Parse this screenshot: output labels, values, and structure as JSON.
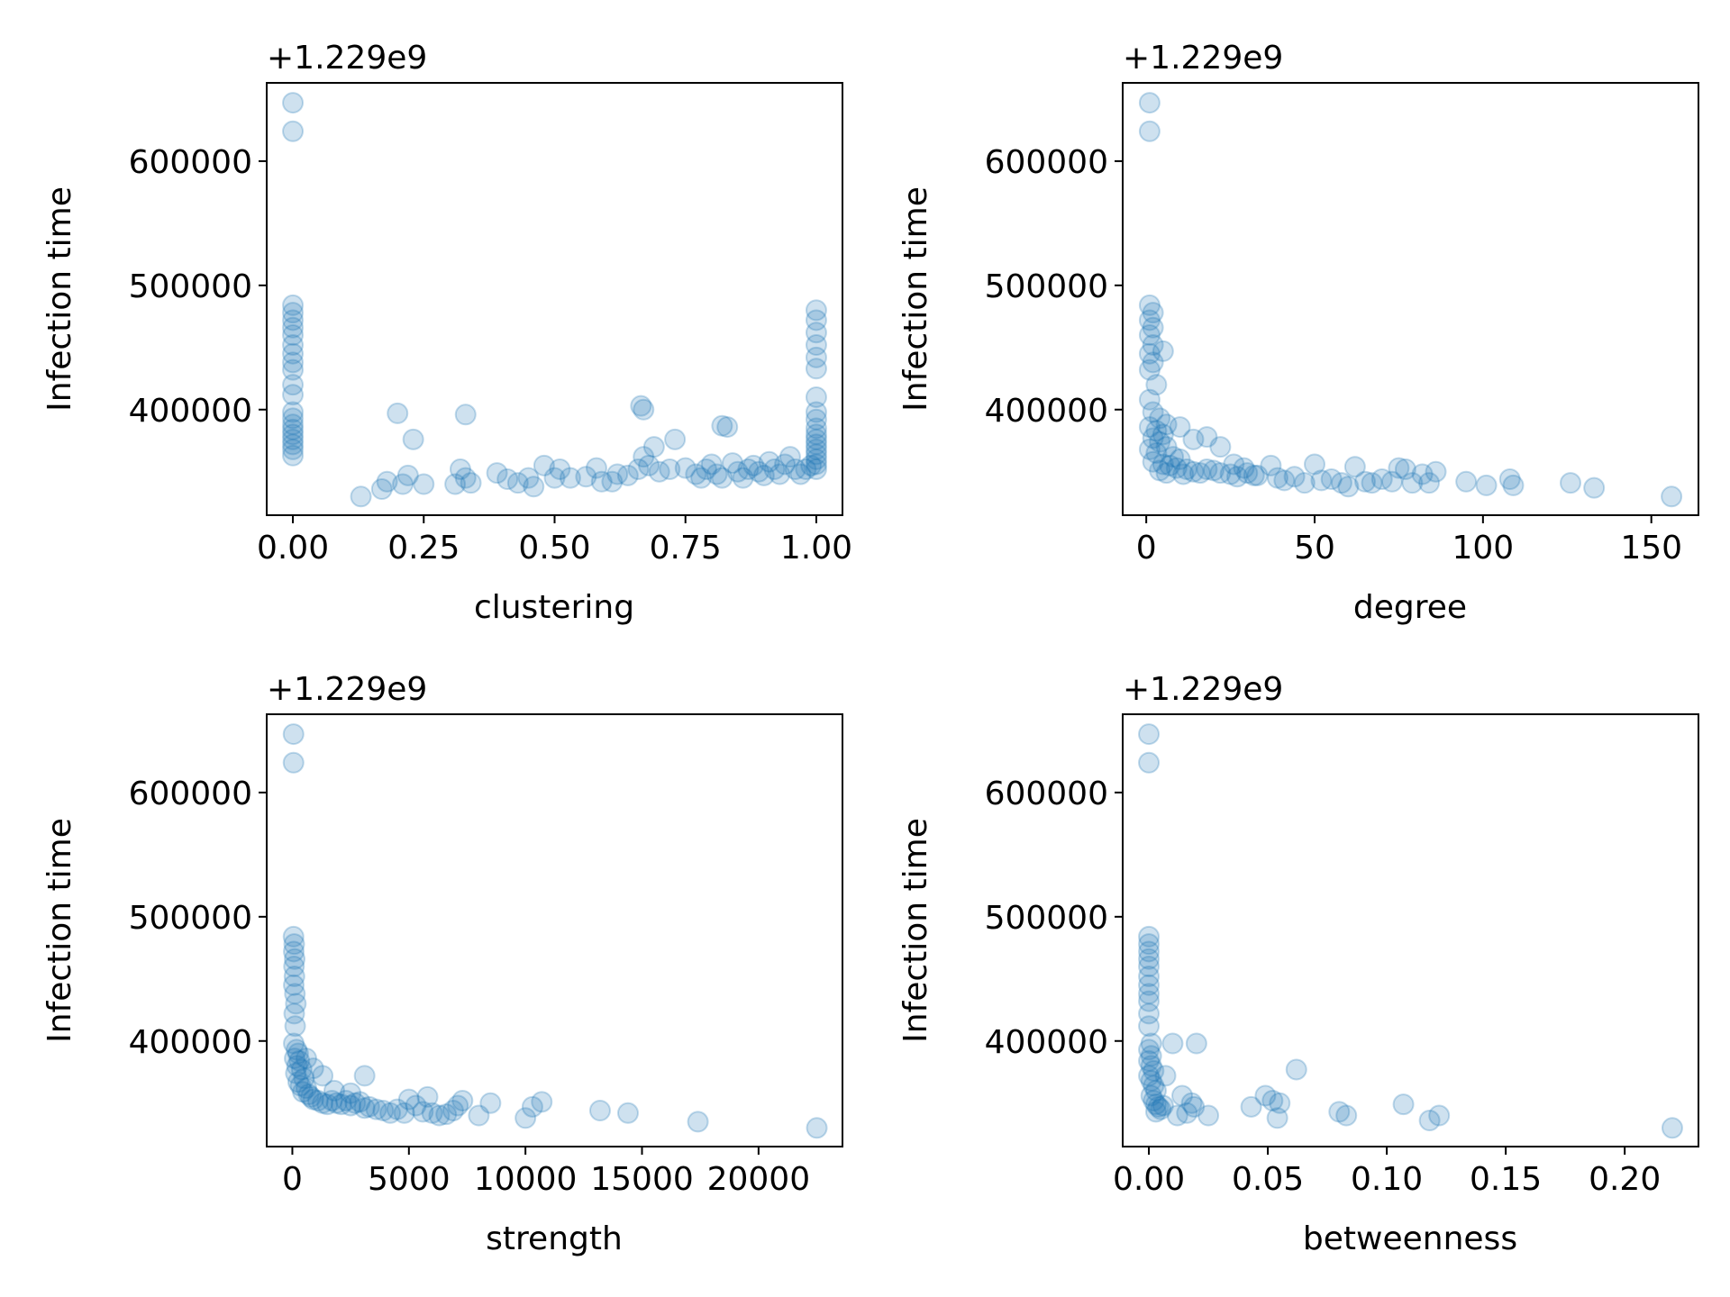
{
  "chart_data": [
    {
      "type": "scatter",
      "xlabel": "clustering",
      "ylabel": "Infection time",
      "y_offset_text": "+1.229e9",
      "xlim": [
        -0.05,
        1.05
      ],
      "ylim": [
        315000,
        663000
      ],
      "xticks": [
        0.0,
        0.25,
        0.5,
        0.75,
        1.0
      ],
      "xtick_labels": [
        "0.00",
        "0.25",
        "0.50",
        "0.75",
        "1.00"
      ],
      "yticks": [
        400000,
        500000,
        600000
      ],
      "ytick_labels": [
        "400000",
        "500000",
        "600000"
      ],
      "marker_color": "#1f77b4",
      "marker_alpha": 0.22,
      "grid": false,
      "points": [
        [
          0.0,
          647000
        ],
        [
          0.0,
          624000
        ],
        [
          0.0,
          484000
        ],
        [
          0.0,
          478000
        ],
        [
          0.0,
          472000
        ],
        [
          0.0,
          466000
        ],
        [
          0.0,
          460000
        ],
        [
          0.0,
          452000
        ],
        [
          0.0,
          445000
        ],
        [
          0.0,
          438000
        ],
        [
          0.0,
          432000
        ],
        [
          0.0,
          420000
        ],
        [
          0.0,
          412000
        ],
        [
          0.0,
          398000
        ],
        [
          0.0,
          393000
        ],
        [
          0.0,
          388000
        ],
        [
          0.0,
          384000
        ],
        [
          0.0,
          380000
        ],
        [
          0.0,
          376000
        ],
        [
          0.0,
          372000
        ],
        [
          0.0,
          368000
        ],
        [
          0.0,
          363000
        ],
        [
          0.13,
          330000
        ],
        [
          0.17,
          336000
        ],
        [
          0.18,
          342000
        ],
        [
          0.2,
          397000
        ],
        [
          0.21,
          340000
        ],
        [
          0.22,
          347000
        ],
        [
          0.23,
          376000
        ],
        [
          0.25,
          340000
        ],
        [
          0.31,
          340000
        ],
        [
          0.32,
          352000
        ],
        [
          0.33,
          345000
        ],
        [
          0.33,
          396000
        ],
        [
          0.34,
          341000
        ],
        [
          0.39,
          349000
        ],
        [
          0.41,
          344000
        ],
        [
          0.43,
          341000
        ],
        [
          0.45,
          345000
        ],
        [
          0.46,
          338000
        ],
        [
          0.48,
          355000
        ],
        [
          0.5,
          345000
        ],
        [
          0.51,
          352000
        ],
        [
          0.53,
          345000
        ],
        [
          0.56,
          346000
        ],
        [
          0.58,
          353000
        ],
        [
          0.59,
          342000
        ],
        [
          0.61,
          342000
        ],
        [
          0.62,
          348000
        ],
        [
          0.64,
          347000
        ],
        [
          0.66,
          352000
        ],
        [
          0.665,
          403000
        ],
        [
          0.67,
          400000
        ],
        [
          0.67,
          362000
        ],
        [
          0.68,
          355000
        ],
        [
          0.69,
          370000
        ],
        [
          0.7,
          350000
        ],
        [
          0.72,
          352000
        ],
        [
          0.73,
          376000
        ],
        [
          0.75,
          353000
        ],
        [
          0.77,
          348000
        ],
        [
          0.78,
          345000
        ],
        [
          0.79,
          352000
        ],
        [
          0.8,
          356000
        ],
        [
          0.81,
          348000
        ],
        [
          0.82,
          345000
        ],
        [
          0.82,
          387000
        ],
        [
          0.83,
          386000
        ],
        [
          0.84,
          357000
        ],
        [
          0.85,
          350000
        ],
        [
          0.86,
          345000
        ],
        [
          0.87,
          352000
        ],
        [
          0.88,
          355000
        ],
        [
          0.89,
          350000
        ],
        [
          0.9,
          347000
        ],
        [
          0.91,
          358000
        ],
        [
          0.92,
          352000
        ],
        [
          0.93,
          348000
        ],
        [
          0.94,
          356000
        ],
        [
          0.95,
          362000
        ],
        [
          0.96,
          352000
        ],
        [
          0.97,
          348000
        ],
        [
          0.98,
          352000
        ],
        [
          0.99,
          355000
        ],
        [
          1.0,
          480000
        ],
        [
          1.0,
          472000
        ],
        [
          1.0,
          462000
        ],
        [
          1.0,
          452000
        ],
        [
          1.0,
          442000
        ],
        [
          1.0,
          433000
        ],
        [
          1.0,
          410000
        ],
        [
          1.0,
          398000
        ],
        [
          1.0,
          392000
        ],
        [
          1.0,
          385000
        ],
        [
          1.0,
          380000
        ],
        [
          1.0,
          376000
        ],
        [
          1.0,
          372000
        ],
        [
          1.0,
          368000
        ],
        [
          1.0,
          364000
        ],
        [
          1.0,
          360000
        ],
        [
          1.0,
          356000
        ],
        [
          1.0,
          352000
        ]
      ]
    },
    {
      "type": "scatter",
      "xlabel": "degree",
      "ylabel": "Infection time",
      "y_offset_text": "+1.229e9",
      "xlim": [
        -7,
        164
      ],
      "ylim": [
        315000,
        663000
      ],
      "xticks": [
        0,
        50,
        100,
        150
      ],
      "xtick_labels": [
        "0",
        "50",
        "100",
        "150"
      ],
      "yticks": [
        400000,
        500000,
        600000
      ],
      "ytick_labels": [
        "400000",
        "500000",
        "600000"
      ],
      "marker_color": "#1f77b4",
      "marker_alpha": 0.22,
      "grid": false,
      "points": [
        [
          1,
          647000
        ],
        [
          1,
          624000
        ],
        [
          1,
          484000
        ],
        [
          2,
          478000
        ],
        [
          1,
          472000
        ],
        [
          2,
          466000
        ],
        [
          1,
          460000
        ],
        [
          2,
          452000
        ],
        [
          1,
          445000
        ],
        [
          2,
          438000
        ],
        [
          5,
          447000
        ],
        [
          1,
          432000
        ],
        [
          3,
          420000
        ],
        [
          1,
          408000
        ],
        [
          2,
          398000
        ],
        [
          4,
          393000
        ],
        [
          6,
          388000
        ],
        [
          1,
          386000
        ],
        [
          3,
          383000
        ],
        [
          5,
          380000
        ],
        [
          2,
          377000
        ],
        [
          4,
          374000
        ],
        [
          6,
          370000
        ],
        [
          1,
          368000
        ],
        [
          3,
          365000
        ],
        [
          8,
          362000
        ],
        [
          10,
          360000
        ],
        [
          2,
          358000
        ],
        [
          5,
          356000
        ],
        [
          7,
          355000
        ],
        [
          9,
          353000
        ],
        [
          12,
          352000
        ],
        [
          4,
          351000
        ],
        [
          6,
          349000
        ],
        [
          11,
          348000
        ],
        [
          14,
          350000
        ],
        [
          16,
          349000
        ],
        [
          18,
          352000
        ],
        [
          20,
          351000
        ],
        [
          22,
          349000
        ],
        [
          25,
          348000
        ],
        [
          27,
          346000
        ],
        [
          30,
          349000
        ],
        [
          32,
          347000
        ],
        [
          10,
          386000
        ],
        [
          14,
          376000
        ],
        [
          18,
          378000
        ],
        [
          22,
          370000
        ],
        [
          26,
          356000
        ],
        [
          29,
          353000
        ],
        [
          33,
          347000
        ],
        [
          37,
          355000
        ],
        [
          39,
          345000
        ],
        [
          41,
          343000
        ],
        [
          44,
          346000
        ],
        [
          47,
          341000
        ],
        [
          50,
          356000
        ],
        [
          52,
          343000
        ],
        [
          55,
          344000
        ],
        [
          58,
          341000
        ],
        [
          60,
          338000
        ],
        [
          62,
          354000
        ],
        [
          65,
          342000
        ],
        [
          67,
          341000
        ],
        [
          70,
          344000
        ],
        [
          73,
          342000
        ],
        [
          75,
          353000
        ],
        [
          77,
          352000
        ],
        [
          79,
          341000
        ],
        [
          82,
          348000
        ],
        [
          84,
          341000
        ],
        [
          86,
          350000
        ],
        [
          95,
          342000
        ],
        [
          101,
          339000
        ],
        [
          108,
          344000
        ],
        [
          109,
          339000
        ],
        [
          126,
          341000
        ],
        [
          133,
          337000
        ],
        [
          156,
          330000
        ]
      ]
    },
    {
      "type": "scatter",
      "xlabel": "strength",
      "ylabel": "Infection time",
      "y_offset_text": "+1.229e9",
      "xlim": [
        -1100,
        23600
      ],
      "ylim": [
        315000,
        663000
      ],
      "xticks": [
        0,
        5000,
        10000,
        15000,
        20000
      ],
      "xtick_labels": [
        "0",
        "5000",
        "10000",
        "15000",
        "20000"
      ],
      "yticks": [
        400000,
        500000,
        600000
      ],
      "ytick_labels": [
        "400000",
        "500000",
        "600000"
      ],
      "marker_color": "#1f77b4",
      "marker_alpha": 0.22,
      "grid": false,
      "points": [
        [
          50,
          647000
        ],
        [
          50,
          624000
        ],
        [
          50,
          484000
        ],
        [
          80,
          478000
        ],
        [
          60,
          472000
        ],
        [
          100,
          466000
        ],
        [
          70,
          460000
        ],
        [
          90,
          452000
        ],
        [
          60,
          445000
        ],
        [
          110,
          438000
        ],
        [
          150,
          430000
        ],
        [
          80,
          422000
        ],
        [
          120,
          412000
        ],
        [
          60,
          398000
        ],
        [
          180,
          393000
        ],
        [
          250,
          390000
        ],
        [
          100,
          386000
        ],
        [
          300,
          384000
        ],
        [
          200,
          380000
        ],
        [
          400,
          377000
        ],
        [
          150,
          374000
        ],
        [
          500,
          370000
        ],
        [
          250,
          367000
        ],
        [
          350,
          364000
        ],
        [
          600,
          362000
        ],
        [
          450,
          359000
        ],
        [
          700,
          357000
        ],
        [
          800,
          355000
        ],
        [
          900,
          353000
        ],
        [
          1100,
          352000
        ],
        [
          1300,
          350000
        ],
        [
          1500,
          349000
        ],
        [
          1700,
          352000
        ],
        [
          1900,
          350000
        ],
        [
          2100,
          349000
        ],
        [
          2300,
          352000
        ],
        [
          2500,
          348000
        ],
        [
          2700,
          350000
        ],
        [
          2900,
          351000
        ],
        [
          3100,
          346000
        ],
        [
          600,
          386000
        ],
        [
          900,
          378000
        ],
        [
          1300,
          372000
        ],
        [
          1800,
          360000
        ],
        [
          2500,
          358000
        ],
        [
          3100,
          372000
        ],
        [
          3300,
          347000
        ],
        [
          3600,
          345000
        ],
        [
          3900,
          344000
        ],
        [
          4200,
          342000
        ],
        [
          4500,
          345000
        ],
        [
          4800,
          342000
        ],
        [
          5000,
          353000
        ],
        [
          5300,
          348000
        ],
        [
          5600,
          343000
        ],
        [
          5800,
          355000
        ],
        [
          6000,
          342000
        ],
        [
          6300,
          340000
        ],
        [
          6600,
          341000
        ],
        [
          6900,
          344000
        ],
        [
          7100,
          348000
        ],
        [
          7300,
          352000
        ],
        [
          8000,
          340000
        ],
        [
          8500,
          350000
        ],
        [
          10000,
          338000
        ],
        [
          10300,
          347000
        ],
        [
          10700,
          351000
        ],
        [
          13200,
          344000
        ],
        [
          14400,
          342000
        ],
        [
          17400,
          335000
        ],
        [
          22500,
          330000
        ]
      ]
    },
    {
      "type": "scatter",
      "xlabel": "betweenness",
      "ylabel": "Infection time",
      "y_offset_text": "+1.229e9",
      "xlim": [
        -0.011,
        0.231
      ],
      "ylim": [
        315000,
        663000
      ],
      "xticks": [
        0.0,
        0.05,
        0.1,
        0.15,
        0.2
      ],
      "xtick_labels": [
        "0.00",
        "0.05",
        "0.10",
        "0.15",
        "0.20"
      ],
      "yticks": [
        400000,
        500000,
        600000
      ],
      "ytick_labels": [
        "400000",
        "500000",
        "600000"
      ],
      "marker_color": "#1f77b4",
      "marker_alpha": 0.22,
      "grid": false,
      "points": [
        [
          0.0,
          647000
        ],
        [
          0.0,
          624000
        ],
        [
          0.0,
          484000
        ],
        [
          0.0,
          478000
        ],
        [
          0.0,
          472000
        ],
        [
          0.0,
          466000
        ],
        [
          0.0,
          460000
        ],
        [
          0.0,
          452000
        ],
        [
          0.0,
          445000
        ],
        [
          0.0,
          438000
        ],
        [
          0.0,
          432000
        ],
        [
          0.0,
          422000
        ],
        [
          0.0,
          412000
        ],
        [
          0.001,
          398000
        ],
        [
          0.0,
          393000
        ],
        [
          0.001,
          388000
        ],
        [
          0.0,
          384000
        ],
        [
          0.001,
          380000
        ],
        [
          0.002,
          376000
        ],
        [
          0.0,
          372000
        ],
        [
          0.001,
          368000
        ],
        [
          0.002,
          364000
        ],
        [
          0.003,
          360000
        ],
        [
          0.001,
          356000
        ],
        [
          0.002,
          352000
        ],
        [
          0.003,
          349000
        ],
        [
          0.004,
          347000
        ],
        [
          0.005,
          345000
        ],
        [
          0.006,
          348000
        ],
        [
          0.003,
          343000
        ],
        [
          0.007,
          372000
        ],
        [
          0.01,
          398000
        ],
        [
          0.012,
          340000
        ],
        [
          0.014,
          356000
        ],
        [
          0.016,
          342000
        ],
        [
          0.018,
          350000
        ],
        [
          0.019,
          347000
        ],
        [
          0.02,
          398000
        ],
        [
          0.025,
          340000
        ],
        [
          0.043,
          347000
        ],
        [
          0.049,
          356000
        ],
        [
          0.052,
          352000
        ],
        [
          0.054,
          338000
        ],
        [
          0.055,
          350000
        ],
        [
          0.062,
          377000
        ],
        [
          0.08,
          343000
        ],
        [
          0.083,
          340000
        ],
        [
          0.107,
          349000
        ],
        [
          0.118,
          336000
        ],
        [
          0.122,
          340000
        ],
        [
          0.22,
          330000
        ]
      ]
    }
  ]
}
